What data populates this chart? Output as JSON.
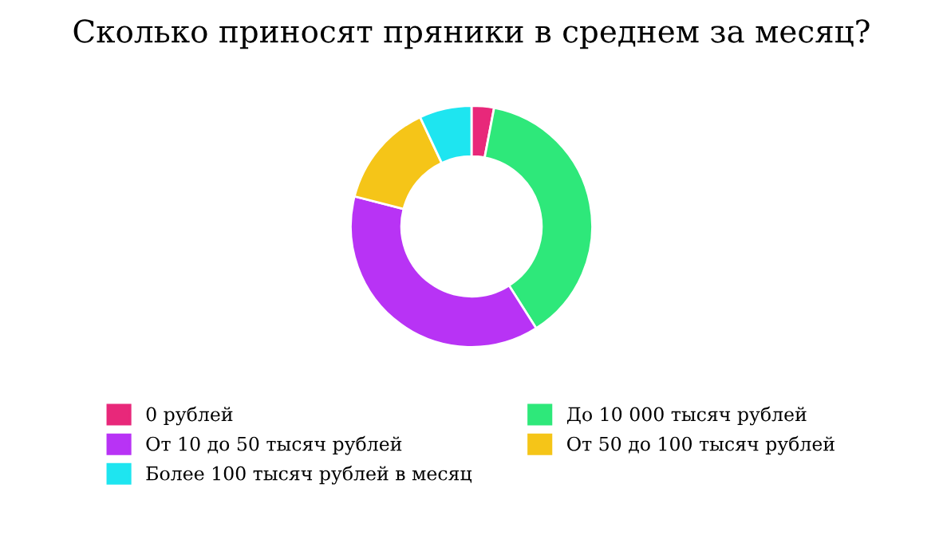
{
  "chart_data": {
    "type": "donut",
    "title": "Сколько приносят пряники в среднем за месяц?",
    "categories": [
      "0 рублей",
      "До 10 000 тысяч рублей",
      "От 10 до 50 тысяч рублей",
      "От 50 до 100 тысяч рублей",
      "Более 100 тысяч рублей в месяц"
    ],
    "values": [
      3,
      38,
      38,
      14,
      7
    ],
    "colors": [
      "#e8287a",
      "#2ee87a",
      "#b833f5",
      "#f5c518",
      "#1ee5f0"
    ],
    "legend": "bottom"
  }
}
